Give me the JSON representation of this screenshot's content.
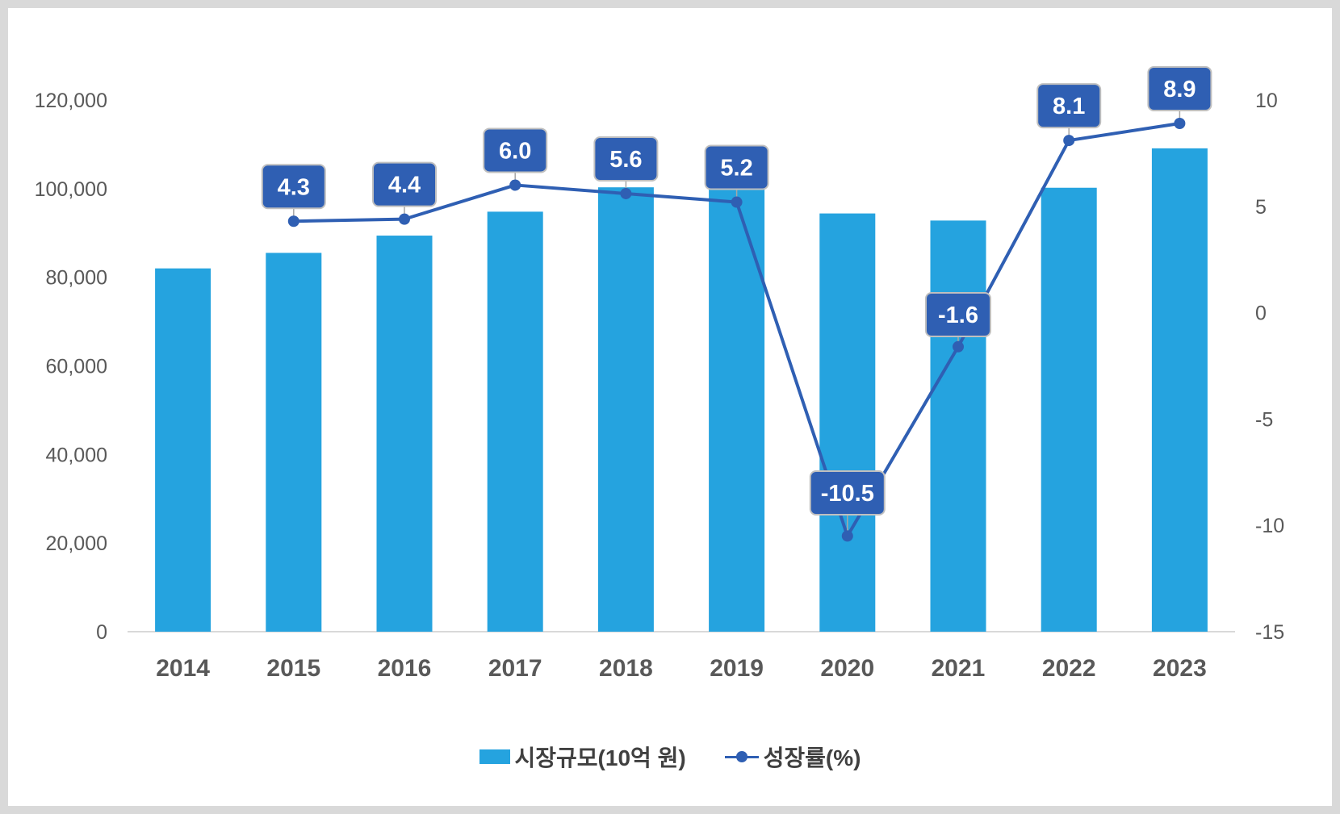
{
  "chart_data": {
    "type": "bar",
    "categories": [
      "2014",
      "2015",
      "2016",
      "2017",
      "2018",
      "2019",
      "2020",
      "2021",
      "2022",
      "2023"
    ],
    "series": [
      {
        "name": "시장규모(10억 원)",
        "type": "bar",
        "axis": "left",
        "values": [
          82000,
          85500,
          89400,
          94800,
          100300,
          105500,
          94400,
          92800,
          100200,
          109100
        ]
      },
      {
        "name": "성장률(%)",
        "type": "line",
        "axis": "right",
        "values": [
          null,
          4.3,
          4.4,
          6.0,
          5.6,
          5.2,
          -10.5,
          -1.6,
          8.1,
          8.9
        ],
        "labels": [
          "",
          "4.3",
          "4.4",
          "6.0",
          "5.6",
          "5.2",
          "-10.5",
          "-1.6",
          "8.1",
          "8.9"
        ]
      }
    ],
    "y_left": {
      "min": 0,
      "max": 120000,
      "ticks": [
        "0",
        "20,000",
        "40,000",
        "60,000",
        "80,000",
        "100,000",
        "120,000"
      ]
    },
    "y_right": {
      "min": -15,
      "max": 10,
      "ticks": [
        "-15",
        "-10",
        "-5",
        "0",
        "5",
        "10"
      ]
    },
    "grid": false,
    "legend_position": "bottom",
    "colors": {
      "bar": "#25a3df",
      "line": "#2f5fb3",
      "label_bg": "#2f5fb3",
      "label_border": "#bfbfbf"
    }
  }
}
